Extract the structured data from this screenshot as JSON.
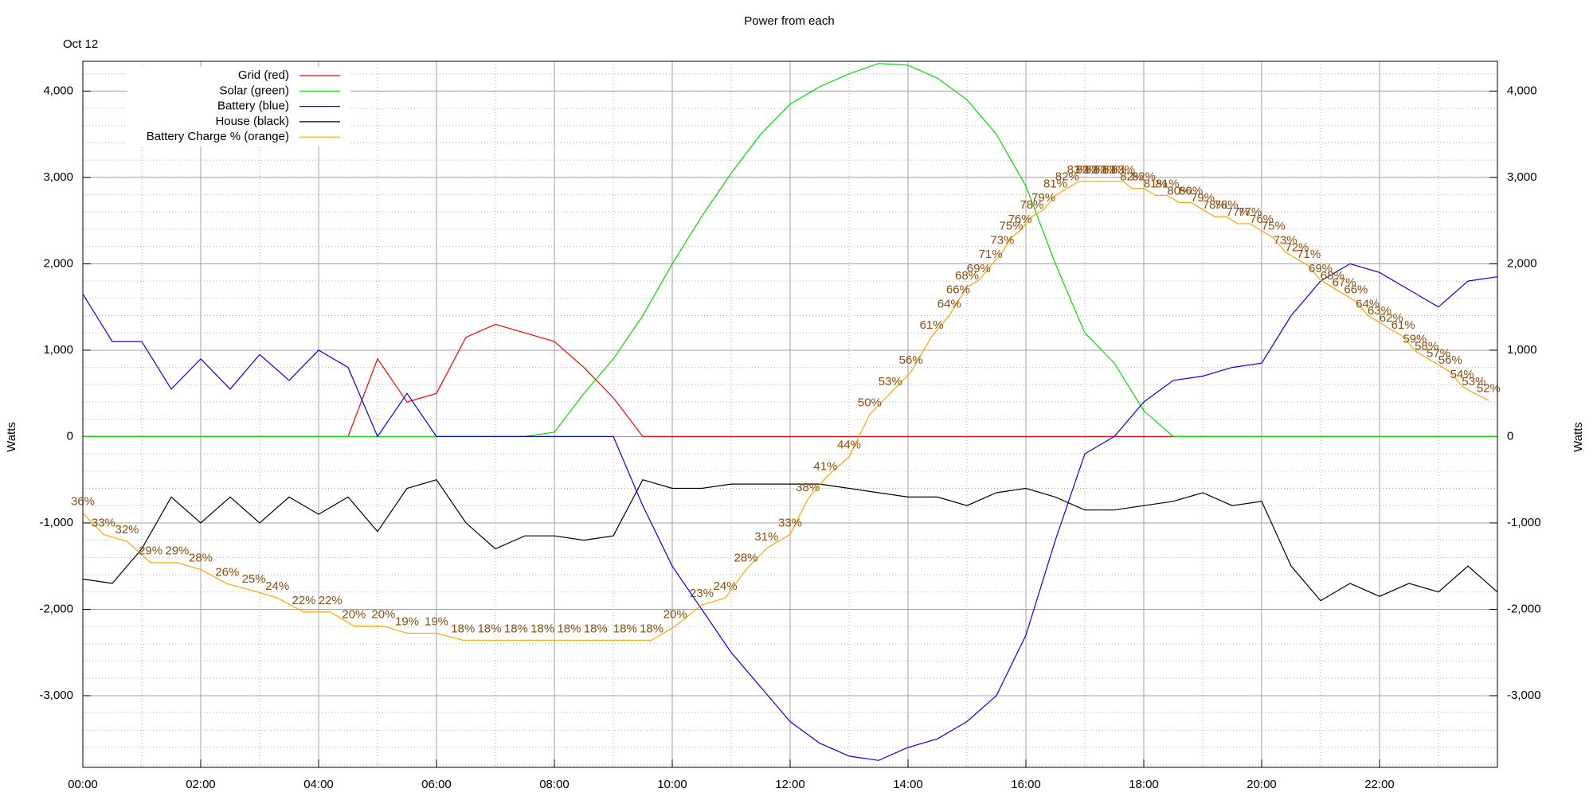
{
  "chart_data": {
    "type": "line",
    "title": "Power from each",
    "subtitle": "Oct 12",
    "ylabel": "Watts",
    "y2label": "Watts",
    "x": [
      0,
      0.5,
      1,
      1.5,
      2,
      2.5,
      3,
      3.5,
      4,
      4.5,
      5,
      5.5,
      6,
      6.5,
      7,
      7.5,
      8,
      8.5,
      9,
      9.5,
      10,
      10.5,
      11,
      11.5,
      12,
      12.5,
      13,
      13.5,
      14,
      14.5,
      15,
      15.5,
      16,
      16.5,
      17,
      17.5,
      18,
      18.5,
      19,
      19.5,
      20,
      20.5,
      21,
      21.5,
      22,
      22.5,
      23,
      23.5,
      24
    ],
    "xlim": [
      0,
      24
    ],
    "xticks": [
      {
        "value": 0,
        "label": "00:00"
      },
      {
        "value": 2,
        "label": "02:00"
      },
      {
        "value": 4,
        "label": "04:00"
      },
      {
        "value": 6,
        "label": "06:00"
      },
      {
        "value": 8,
        "label": "08:00"
      },
      {
        "value": 10,
        "label": "10:00"
      },
      {
        "value": 12,
        "label": "12:00"
      },
      {
        "value": 14,
        "label": "14:00"
      },
      {
        "value": 16,
        "label": "16:00"
      },
      {
        "value": 18,
        "label": "18:00"
      },
      {
        "value": 20,
        "label": "20:00"
      },
      {
        "value": 22,
        "label": "22:00"
      }
    ],
    "ylim": [
      -3830,
      4345
    ],
    "yticks": [
      {
        "value": -3000,
        "label": "-3,000"
      },
      {
        "value": -2000,
        "label": "-2,000"
      },
      {
        "value": -1000,
        "label": "-1,000"
      },
      0,
      {
        "value": 1000,
        "label": "1,000"
      },
      {
        "value": 2000,
        "label": "2,000"
      },
      {
        "value": 3000,
        "label": "3,000"
      },
      {
        "value": 4000,
        "label": "4,000"
      }
    ],
    "pctlim": [
      0,
      100
    ],
    "grid": true,
    "legend": "top-left",
    "label_color": "#8b4c0c",
    "series": [
      {
        "name": "Grid (red)",
        "color": "#ff0000",
        "values": [
          0,
          0,
          0,
          0,
          0,
          0,
          0,
          0,
          0,
          0,
          900,
          400,
          500,
          1150,
          1300,
          1200,
          1100,
          800,
          450,
          0,
          0,
          0,
          0,
          0,
          0,
          0,
          0,
          0,
          0,
          0,
          0,
          0,
          0,
          0,
          0,
          0,
          0,
          0,
          0,
          0,
          0,
          0,
          0,
          0,
          0,
          0,
          0,
          0,
          0
        ]
      },
      {
        "name": "Solar (green)",
        "color": "#00dd00",
        "values": [
          0,
          0,
          0,
          0,
          0,
          0,
          0,
          0,
          0,
          0,
          0,
          0,
          0,
          0,
          0,
          0,
          50,
          500,
          900,
          1400,
          2000,
          2550,
          3050,
          3500,
          3850,
          4050,
          4200,
          4320,
          4300,
          4150,
          3900,
          3500,
          2900,
          2000,
          1200,
          850,
          300,
          0,
          0,
          0,
          0,
          0,
          0,
          0,
          0,
          0,
          0,
          0,
          0
        ]
      },
      {
        "name": "Battery (blue)",
        "color": "#0000ff",
        "values": [
          1650,
          1100,
          1100,
          550,
          900,
          550,
          950,
          650,
          1000,
          800,
          0,
          500,
          0,
          0,
          0,
          0,
          0,
          0,
          0,
          -800,
          -1500,
          -2000,
          -2500,
          -2900,
          -3300,
          -3550,
          -3700,
          -3750,
          -3600,
          -3500,
          -3300,
          -3000,
          -2300,
          -1200,
          -200,
          0,
          400,
          650,
          700,
          800,
          850,
          1400,
          1800,
          2000,
          1900,
          1700,
          1500,
          1800,
          1850
        ]
      },
      {
        "name": "House (black)",
        "color": "#000000",
        "values": [
          -1650,
          -1700,
          -1300,
          -700,
          -1000,
          -700,
          -1000,
          -700,
          -900,
          -700,
          -1100,
          -600,
          -500,
          -1000,
          -1300,
          -1150,
          -1150,
          -1200,
          -1150,
          -500,
          -600,
          -600,
          -550,
          -550,
          -550,
          -550,
          -600,
          -650,
          -700,
          -700,
          -800,
          -650,
          -600,
          -700,
          -850,
          -850,
          -800,
          -750,
          -650,
          -800,
          -750,
          -1500,
          -1900,
          -1700,
          -1850,
          -1700,
          -1800,
          -1500,
          -1800
        ]
      },
      {
        "name": "Battery Charge % (orange)",
        "color": "#ffa500",
        "axis": "pct",
        "x": [
          0,
          0.35,
          0.75,
          1.15,
          1.6,
          2.0,
          2.45,
          2.9,
          3.3,
          3.75,
          4.2,
          4.6,
          5.1,
          5.5,
          6.0,
          6.45,
          6.9,
          7.35,
          7.8,
          8.25,
          8.7,
          9.2,
          9.65,
          10.05,
          10.5,
          10.9,
          11.25,
          11.6,
          12.0,
          12.3,
          12.6,
          13.0,
          13.35,
          13.7,
          14.05,
          14.4,
          14.7,
          14.85,
          15.0,
          15.2,
          15.4,
          15.6,
          15.75,
          15.9,
          16.1,
          16.3,
          16.5,
          16.7,
          16.9,
          17.05,
          17.2,
          17.35,
          17.5,
          17.65,
          17.8,
          18.0,
          18.2,
          18.4,
          18.6,
          18.8,
          19.0,
          19.2,
          19.4,
          19.6,
          19.8,
          20.0,
          20.2,
          20.4,
          20.6,
          20.8,
          21.0,
          21.2,
          21.4,
          21.6,
          21.8,
          22.0,
          22.2,
          22.4,
          22.6,
          22.8,
          23.0,
          23.2,
          23.4,
          23.6,
          23.85
        ],
        "values": [
          36,
          33,
          32,
          29,
          29,
          28,
          26,
          25,
          24,
          22,
          22,
          20,
          20,
          19,
          19,
          18,
          18,
          18,
          18,
          18,
          18,
          18,
          18,
          20,
          23,
          24,
          28,
          31,
          33,
          38,
          41,
          44,
          50,
          53,
          56,
          61,
          64,
          66,
          68,
          69,
          71,
          73,
          75,
          76,
          78,
          79,
          81,
          82,
          83,
          83,
          83,
          83,
          83,
          83,
          82,
          82,
          81,
          81,
          80,
          80,
          79,
          78,
          78,
          77,
          77,
          76,
          75,
          73,
          72,
          71,
          69,
          68,
          67,
          66,
          64,
          63,
          62,
          61,
          59,
          58,
          57,
          56,
          54,
          53,
          52
        ],
        "value_labels": [
          "36%",
          "33%",
          "32%",
          "29%",
          "29%",
          "28%",
          "26%",
          "25%",
          "24%",
          "22%",
          "22%",
          "20%",
          "20%",
          "19%",
          "19%",
          "18%",
          "18%",
          "18%",
          "18%",
          "18%",
          "18%",
          "18%",
          "18%",
          "20%",
          "23%",
          "24%",
          "28%",
          "31%",
          "33%",
          "38%",
          "41%",
          "44%",
          "50%",
          "53%",
          "56%",
          "61%",
          "64%",
          "66%",
          "68%",
          "69%",
          "71%",
          "73%",
          "75%",
          "76%",
          "78%",
          "79%",
          "81%",
          "82%",
          "83%",
          "83%",
          "83%",
          "83%",
          "83%",
          "83%",
          "82%",
          "82%",
          "81%",
          "81%",
          "80%",
          "80%",
          "79%",
          "78%",
          "78%",
          "77%",
          "77%",
          "76%",
          "75%",
          "73%",
          "72%",
          "71%",
          "69%",
          "68%",
          "67%",
          "66%",
          "64%",
          "63%",
          "62%",
          "61%",
          "59%",
          "58%",
          "57%",
          "56%",
          "54%",
          "53%",
          "52%"
        ]
      }
    ]
  }
}
